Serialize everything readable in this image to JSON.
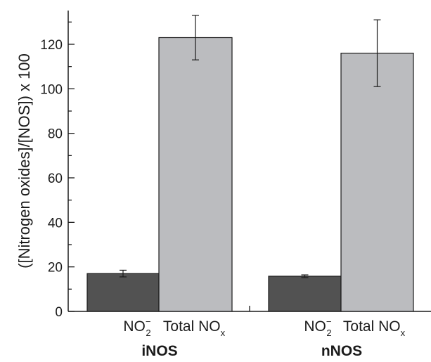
{
  "chart_data": {
    "type": "bar",
    "title": "",
    "xlabel": "",
    "ylabel": "([Nitrogen oxides]/[NOS]) x 100",
    "ylim": [
      0,
      135
    ],
    "yticks": [
      0,
      20,
      40,
      60,
      80,
      100,
      120
    ],
    "grid": false,
    "legend": "none",
    "groups": [
      {
        "name": "iNOS",
        "bars": [
          {
            "label": "NO",
            "sub": "2",
            "sup": "−",
            "value": 17,
            "error": 1.5,
            "color": "#525252"
          },
          {
            "label": "Total NO",
            "sub": "x",
            "sup": "",
            "value": 123,
            "error": 10,
            "color": "#bbbcbf"
          }
        ]
      },
      {
        "name": "nNOS",
        "bars": [
          {
            "label": "NO",
            "sub": "2",
            "sup": "−",
            "value": 15.8,
            "error": 0.6,
            "color": "#525252"
          },
          {
            "label": "Total NO",
            "sub": "x",
            "sup": "",
            "value": 116,
            "error": 15,
            "color": "#bbbcbf"
          }
        ]
      }
    ]
  }
}
